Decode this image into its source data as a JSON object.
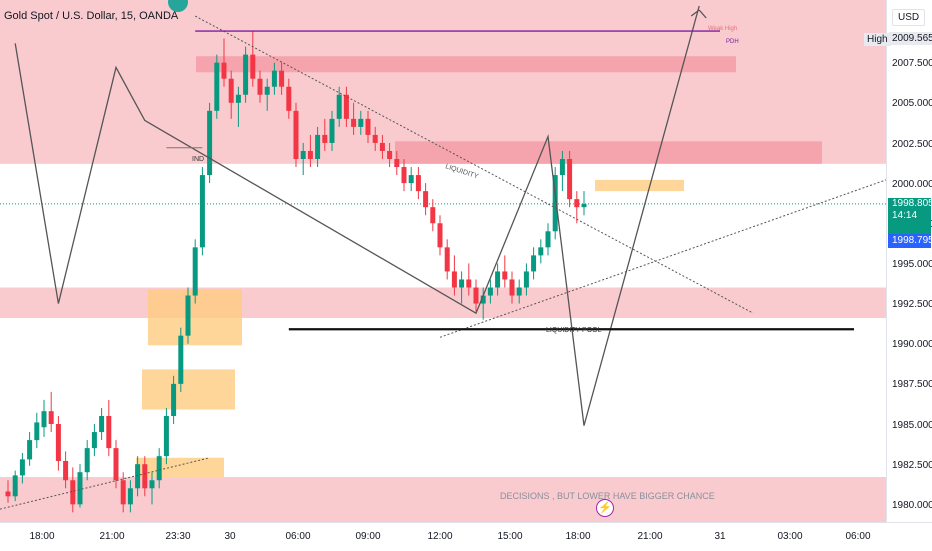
{
  "header": {
    "symbol": "Gold Spot / U.S. Dollar, 15, OANDA"
  },
  "price_axis": {
    "currency": "USD",
    "high_tag": "High",
    "high_price": "2009.565",
    "current_price": "1998.805",
    "countdown": "14:14",
    "last_price": "1998.795"
  },
  "annotations": {
    "liquidity": "LIQUIDITY",
    "liquidity_pool": "LIQUIDITY POOL",
    "ind": "IND",
    "pdh": "PDH",
    "weak_high": "Weak High",
    "decisions": "DECISIONS , BUT LOWER HAVE BIGGER CHANCE"
  },
  "colors": {
    "bull": "#089981",
    "bear": "#f23645",
    "zone_red": "#f7b5bb",
    "zone_orange": "#ffcc80",
    "last_price": "#2962ff"
  },
  "icons": {
    "event": "lightning-bolt-icon"
  },
  "chart_data": {
    "type": "candlestick",
    "title": "Gold Spot / U.S. Dollar, 15, OANDA",
    "timeframe": "15",
    "y_ticks": [
      1980.0,
      1982.5,
      1985.0,
      1987.5,
      1990.0,
      1992.5,
      1995.0,
      1997.5,
      2000.0,
      2002.5,
      2005.0,
      2007.5,
      2009.565
    ],
    "y_tick_labels": [
      "1980.000",
      "1982.500",
      "1985.000",
      "1987.500",
      "1990.000",
      "1992.500",
      "1995.000",
      "1997.500",
      "2000.000",
      "2002.500",
      "2005.000",
      "2007.500",
      "2009.565"
    ],
    "x_tick_labels": [
      "18:00",
      "21:00",
      "23:30",
      "30",
      "06:00",
      "09:00",
      "12:00",
      "15:00",
      "18:00",
      "21:00",
      "31",
      "03:00",
      "06:00"
    ],
    "ylim": [
      1979.0,
      2011.5
    ],
    "current_price": 1998.805,
    "last_price": 1998.795,
    "liquidity_pool_level": 1991.0,
    "zones": [
      {
        "kind": "premium",
        "from": 2001.3,
        "to": 2011.5
      },
      {
        "kind": "mid",
        "from": 1991.7,
        "to": 1993.6
      },
      {
        "kind": "discount",
        "from": 1979.0,
        "to": 1981.8
      },
      {
        "kind": "supply",
        "from": 2007.0,
        "to": 2008.0
      },
      {
        "kind": "supply",
        "from": 2001.3,
        "to": 2002.7
      },
      {
        "kind": "fvg",
        "from": 1999.6,
        "to": 2000.3
      },
      {
        "kind": "order_block",
        "from": 1990.0,
        "to": 1993.5
      },
      {
        "kind": "order_block",
        "from": 1986.0,
        "to": 1988.5
      },
      {
        "kind": "order_block",
        "from": 1981.8,
        "to": 1983.0
      }
    ],
    "candles": [
      [
        1980.9,
        1981.6,
        1980.2,
        1980.6
      ],
      [
        1980.6,
        1982.2,
        1980.3,
        1981.9
      ],
      [
        1981.9,
        1983.3,
        1981.4,
        1982.9
      ],
      [
        1982.9,
        1984.6,
        1982.5,
        1984.1
      ],
      [
        1984.1,
        1985.8,
        1983.6,
        1985.2
      ],
      [
        1984.9,
        1986.6,
        1984.3,
        1985.9
      ],
      [
        1985.9,
        1987.1,
        1984.6,
        1985.1
      ],
      [
        1985.1,
        1985.6,
        1982.2,
        1982.8
      ],
      [
        1982.8,
        1983.4,
        1981.1,
        1981.6
      ],
      [
        1981.6,
        1982.4,
        1979.6,
        1980.1
      ],
      [
        1980.1,
        1982.6,
        1979.9,
        1982.1
      ],
      [
        1982.1,
        1984.1,
        1981.6,
        1983.6
      ],
      [
        1983.6,
        1985.1,
        1983.1,
        1984.6
      ],
      [
        1984.6,
        1986.1,
        1984.1,
        1985.6
      ],
      [
        1985.6,
        1986.6,
        1983.1,
        1983.6
      ],
      [
        1983.6,
        1984.1,
        1981.1,
        1981.6
      ],
      [
        1981.6,
        1982.1,
        1979.6,
        1980.1
      ],
      [
        1980.1,
        1981.6,
        1979.6,
        1981.1
      ],
      [
        1981.1,
        1983.1,
        1980.6,
        1982.6
      ],
      [
        1982.6,
        1983.1,
        1980.6,
        1981.1
      ],
      [
        1981.1,
        1982.1,
        1980.1,
        1981.6
      ],
      [
        1981.6,
        1983.6,
        1981.1,
        1983.1
      ],
      [
        1983.1,
        1986.1,
        1982.6,
        1985.6
      ],
      [
        1985.6,
        1988.1,
        1985.1,
        1987.6
      ],
      [
        1987.6,
        1991.1,
        1987.1,
        1990.6
      ],
      [
        1990.6,
        1993.6,
        1990.1,
        1993.1
      ],
      [
        1993.1,
        1996.6,
        1992.6,
        1996.1
      ],
      [
        1996.1,
        2001.1,
        1995.6,
        2000.6
      ],
      [
        2000.6,
        2005.1,
        2000.1,
        2004.6
      ],
      [
        2004.6,
        2008.1,
        2004.1,
        2007.6
      ],
      [
        2007.6,
        2009.1,
        2006.1,
        2006.6
      ],
      [
        2006.6,
        2007.1,
        2004.1,
        2005.1
      ],
      [
        2005.1,
        2006.1,
        2003.6,
        2005.6
      ],
      [
        2005.6,
        2008.6,
        2005.1,
        2008.1
      ],
      [
        2008.1,
        2009.6,
        2006.1,
        2006.6
      ],
      [
        2006.6,
        2007.1,
        2005.1,
        2005.6
      ],
      [
        2005.6,
        2006.6,
        2004.6,
        2006.1
      ],
      [
        2006.1,
        2007.6,
        2005.6,
        2007.1
      ],
      [
        2007.1,
        2007.6,
        2005.6,
        2006.1
      ],
      [
        2006.1,
        2006.6,
        2004.1,
        2004.6
      ],
      [
        2004.6,
        2005.1,
        2001.1,
        2001.6
      ],
      [
        2001.6,
        2002.6,
        2000.6,
        2002.1
      ],
      [
        2002.1,
        2003.1,
        2001.1,
        2001.6
      ],
      [
        2001.6,
        2003.6,
        2001.1,
        2003.1
      ],
      [
        2003.1,
        2004.1,
        2002.1,
        2002.6
      ],
      [
        2002.6,
        2004.6,
        2002.1,
        2004.1
      ],
      [
        2004.1,
        2006.1,
        2003.6,
        2005.6
      ],
      [
        2005.6,
        2006.1,
        2003.6,
        2004.1
      ],
      [
        2004.1,
        2005.1,
        2003.1,
        2003.6
      ],
      [
        2003.6,
        2004.6,
        2003.1,
        2004.1
      ],
      [
        2004.1,
        2004.6,
        2002.6,
        2003.1
      ],
      [
        2003.1,
        2003.6,
        2002.1,
        2002.6
      ],
      [
        2002.6,
        2003.1,
        2001.6,
        2002.1
      ],
      [
        2002.1,
        2002.6,
        2001.1,
        2001.6
      ],
      [
        2001.6,
        2002.1,
        2000.6,
        2001.1
      ],
      [
        2001.1,
        2001.6,
        1999.6,
        2000.1
      ],
      [
        2000.1,
        2001.1,
        1999.6,
        2000.6
      ],
      [
        2000.6,
        2001.1,
        1999.1,
        1999.6
      ],
      [
        1999.6,
        2000.1,
        1998.1,
        1998.6
      ],
      [
        1998.6,
        1999.1,
        1997.1,
        1997.6
      ],
      [
        1997.6,
        1998.1,
        1995.6,
        1996.1
      ],
      [
        1996.1,
        1996.6,
        1994.1,
        1994.6
      ],
      [
        1994.6,
        1995.6,
        1993.1,
        1993.6
      ],
      [
        1993.6,
        1994.6,
        1992.6,
        1994.1
      ],
      [
        1994.1,
        1995.1,
        1993.1,
        1993.6
      ],
      [
        1993.6,
        1994.1,
        1992.1,
        1992.6
      ],
      [
        1992.6,
        1993.6,
        1991.6,
        1993.1
      ],
      [
        1993.1,
        1994.1,
        1992.6,
        1993.6
      ],
      [
        1993.6,
        1995.1,
        1993.1,
        1994.6
      ],
      [
        1994.6,
        1995.6,
        1993.6,
        1994.1
      ],
      [
        1994.1,
        1994.6,
        1992.6,
        1993.1
      ],
      [
        1993.1,
        1994.1,
        1992.6,
        1993.6
      ],
      [
        1993.6,
        1995.1,
        1993.1,
        1994.6
      ],
      [
        1994.6,
        1996.1,
        1994.1,
        1995.6
      ],
      [
        1995.6,
        1996.6,
        1995.1,
        1996.1
      ],
      [
        1996.1,
        1997.6,
        1995.6,
        1997.1
      ],
      [
        1997.1,
        2001.1,
        1996.6,
        2000.6
      ],
      [
        2000.6,
        2002.1,
        1999.6,
        2001.6
      ],
      [
        2001.6,
        2002.1,
        1998.6,
        1999.1
      ],
      [
        1999.1,
        1999.6,
        1997.6,
        1998.6
      ],
      [
        1998.6,
        1999.6,
        1998.1,
        1998.8
      ]
    ],
    "projection_path": [
      [
        1,
        2008.8
      ],
      [
        7,
        1992.6
      ],
      [
        15,
        2007.3
      ],
      [
        19,
        2004.0
      ],
      [
        65,
        1992.0
      ],
      [
        75,
        2003.0
      ],
      [
        80,
        1985.0
      ],
      [
        96,
        2011.5
      ]
    ]
  }
}
